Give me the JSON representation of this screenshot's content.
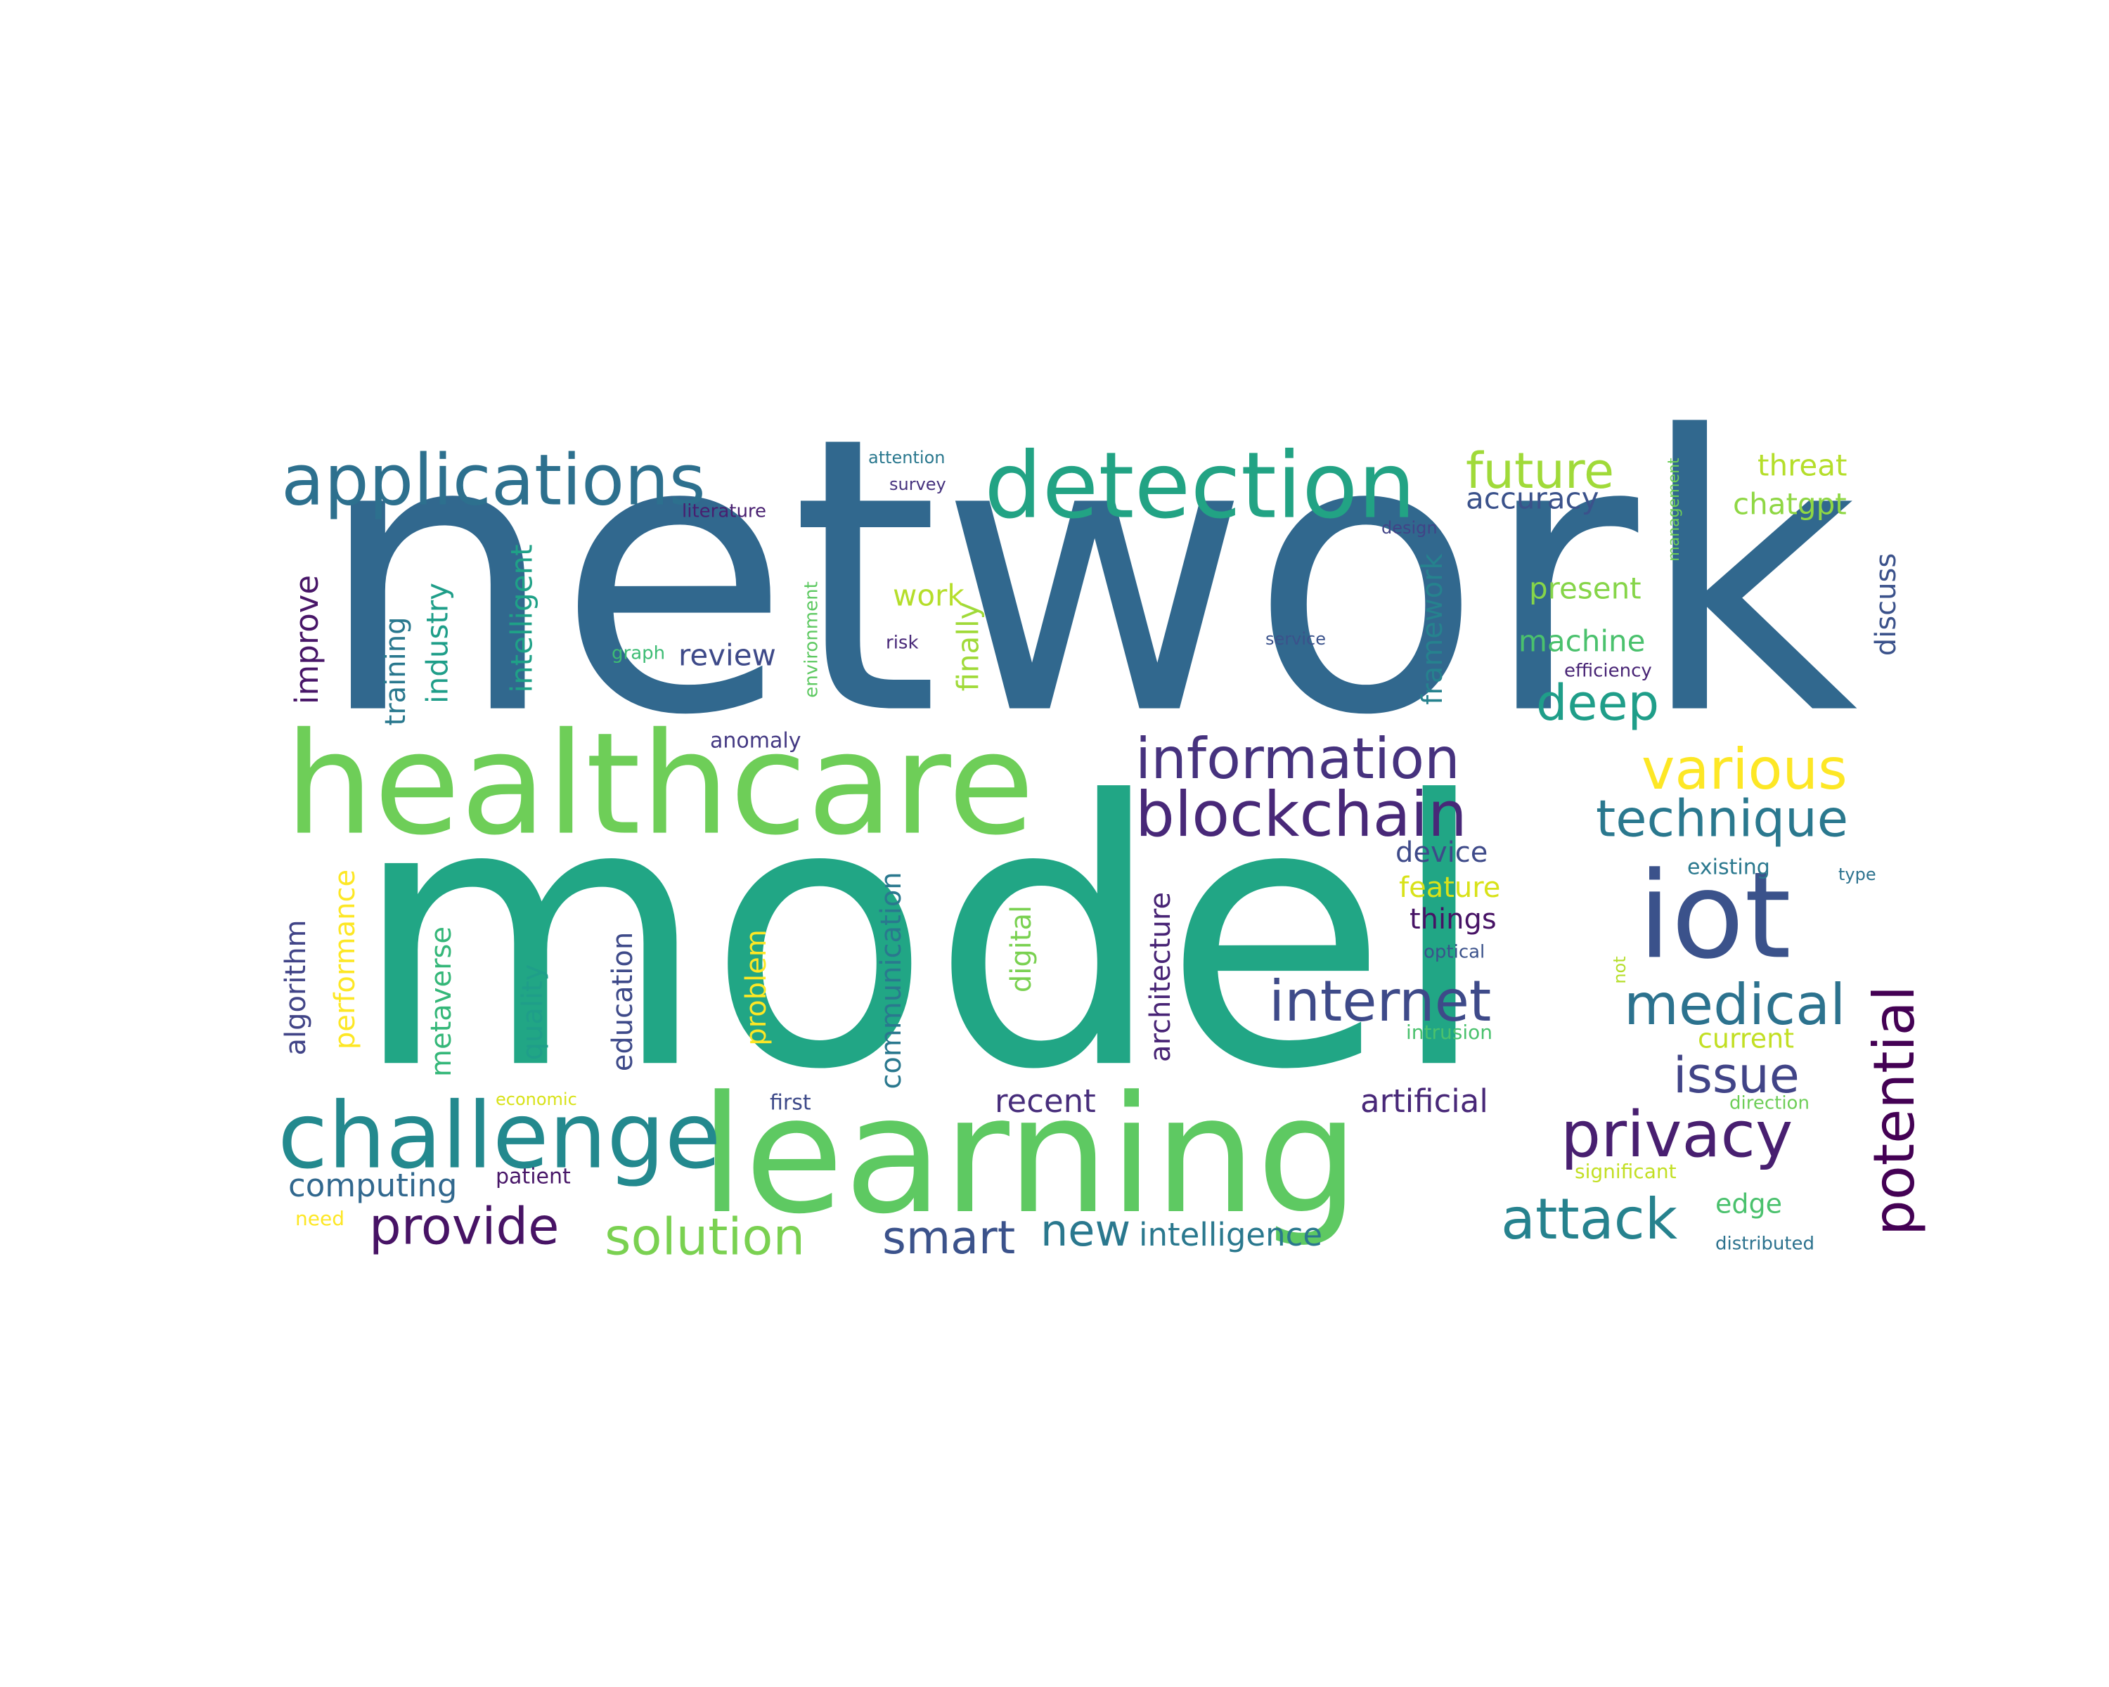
{
  "colors": {
    "background": "#ffffff",
    "palette": [
      "#440154",
      "#482878",
      "#3e4a89",
      "#31688e",
      "#26828e",
      "#1f9e89",
      "#35b779",
      "#6ece58",
      "#b5de2b",
      "#fde725"
    ]
  },
  "words": [
    {
      "text": "network",
      "color": "#31688e"
    },
    {
      "text": "model",
      "color": "#21a685"
    },
    {
      "text": "learning",
      "color": "#5ec962"
    },
    {
      "text": "healthcare",
      "color": "#6ece58"
    },
    {
      "text": "detection",
      "color": "#22a384"
    },
    {
      "text": "applications",
      "color": "#2d708e"
    },
    {
      "text": "challenge",
      "color": "#23898e"
    },
    {
      "text": "iot",
      "color": "#3b528b"
    },
    {
      "text": "blockchain",
      "color": "#482878"
    },
    {
      "text": "information",
      "color": "#46327e"
    },
    {
      "text": "privacy",
      "color": "#481f70"
    },
    {
      "text": "internet",
      "color": "#3e4a89"
    },
    {
      "text": "medical",
      "color": "#2c728e"
    },
    {
      "text": "attack",
      "color": "#26828e"
    },
    {
      "text": "technique",
      "color": "#2a788e"
    },
    {
      "text": "various",
      "color": "#fde725"
    },
    {
      "text": "future",
      "color": "#a0da39"
    },
    {
      "text": "deep",
      "color": "#1f9e89"
    },
    {
      "text": "potential",
      "color": "#440154"
    },
    {
      "text": "issue",
      "color": "#414487"
    },
    {
      "text": "provide",
      "color": "#471365"
    },
    {
      "text": "solution",
      "color": "#7ad151"
    },
    {
      "text": "smart",
      "color": "#3b528b"
    },
    {
      "text": "new",
      "color": "#2a788e"
    },
    {
      "text": "intelligence",
      "color": "#2a788e"
    },
    {
      "text": "artificial",
      "color": "#482878"
    },
    {
      "text": "recent",
      "color": "#472d7b"
    },
    {
      "text": "computing",
      "color": "#31688e"
    },
    {
      "text": "accuracy",
      "color": "#3b528b"
    },
    {
      "text": "threat",
      "color": "#b5de2b"
    },
    {
      "text": "chatgpt",
      "color": "#8fd744"
    },
    {
      "text": "present",
      "color": "#86d549"
    },
    {
      "text": "machine",
      "color": "#4ac16d"
    },
    {
      "text": "review",
      "color": "#3e4a89"
    },
    {
      "text": "work",
      "color": "#b5de2b"
    },
    {
      "text": "device",
      "color": "#3e4a89"
    },
    {
      "text": "feature",
      "color": "#d8e219"
    },
    {
      "text": "things",
      "color": "#471365"
    },
    {
      "text": "current",
      "color": "#c2df23"
    },
    {
      "text": "edge",
      "color": "#4ac16d"
    },
    {
      "text": "patient",
      "color": "#481668"
    },
    {
      "text": "first",
      "color": "#3e4a89"
    },
    {
      "text": "need",
      "color": "#fde725"
    },
    {
      "text": "economic",
      "color": "#d8e219"
    },
    {
      "text": "optical",
      "color": "#3b528b"
    },
    {
      "text": "intrusion",
      "color": "#4ac16d"
    },
    {
      "text": "existing",
      "color": "#2a788e"
    },
    {
      "text": "type",
      "color": "#2c728e"
    },
    {
      "text": "significant",
      "color": "#c2df23"
    },
    {
      "text": "distributed",
      "color": "#2c728e"
    },
    {
      "text": "direction",
      "color": "#6ece58"
    },
    {
      "text": "anomaly",
      "color": "#443983"
    },
    {
      "text": "graph",
      "color": "#3dbc74"
    },
    {
      "text": "risk",
      "color": "#482878"
    },
    {
      "text": "service",
      "color": "#3b528b"
    },
    {
      "text": "efficiency",
      "color": "#482475"
    },
    {
      "text": "design",
      "color": "#414487"
    },
    {
      "text": "attention",
      "color": "#2a788e"
    },
    {
      "text": "survey",
      "color": "#46327e"
    },
    {
      "text": "literature",
      "color": "#481f70"
    },
    {
      "text": "improve",
      "color": "#481668"
    },
    {
      "text": "training",
      "color": "#2a788e"
    },
    {
      "text": "industry",
      "color": "#1f9e89"
    },
    {
      "text": "intelligent",
      "color": "#1fa187"
    },
    {
      "text": "environment",
      "color": "#5ec962"
    },
    {
      "text": "finally",
      "color": "#a0da39"
    },
    {
      "text": "framework",
      "color": "#26828e"
    },
    {
      "text": "management",
      "color": "#6ece58"
    },
    {
      "text": "discuss",
      "color": "#3b528b"
    },
    {
      "text": "algorithm",
      "color": "#414487"
    },
    {
      "text": "performance",
      "color": "#fde725"
    },
    {
      "text": "metaverse",
      "color": "#35b779"
    },
    {
      "text": "quality",
      "color": "#1f9e89"
    },
    {
      "text": "education",
      "color": "#3e4a89"
    },
    {
      "text": "problem",
      "color": "#fde725"
    },
    {
      "text": "communication",
      "color": "#2a788e"
    },
    {
      "text": "digital",
      "color": "#7ad151"
    },
    {
      "text": "architecture",
      "color": "#482475"
    },
    {
      "text": "not",
      "color": "#b5de2b"
    }
  ]
}
